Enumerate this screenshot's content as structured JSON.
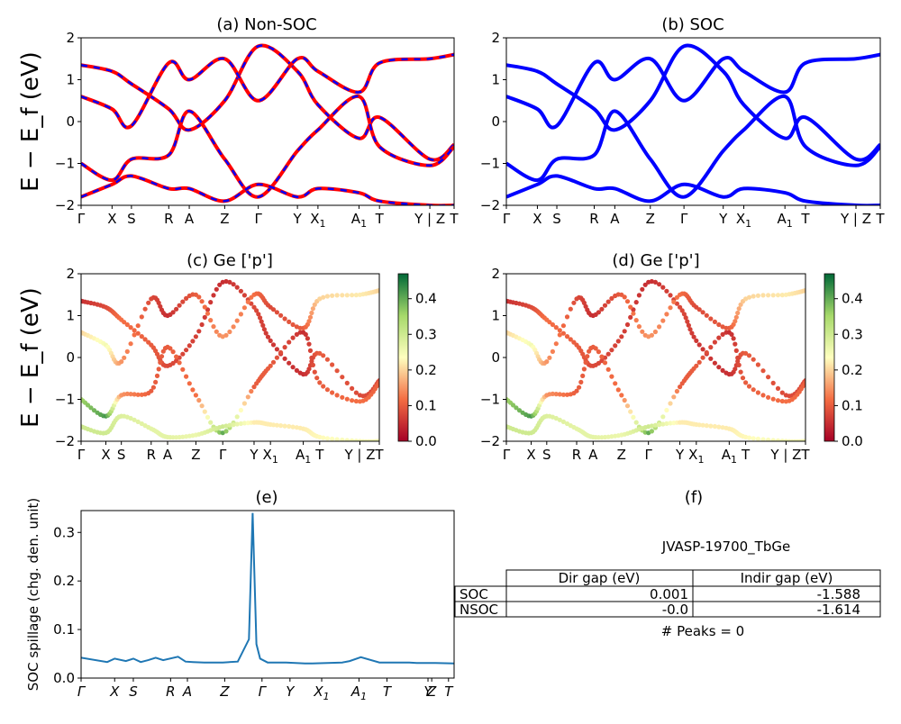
{
  "panels": {
    "a": {
      "title": "(a) Non-SOC",
      "ylabel": "E − E_f (eV)"
    },
    "b": {
      "title": "(b) SOC"
    },
    "c": {
      "title": "(c)  Ge ['p']",
      "ylabel": "E − E_f (eV)"
    },
    "d": {
      "title": "(d) Ge ['p']"
    },
    "e": {
      "title": "(e)",
      "ylabel": "SOC spillage (chg. den. unit)"
    },
    "f": {
      "title": "(f)"
    }
  },
  "band_ticks": [
    "Γ",
    "X",
    "S",
    "R",
    "A",
    "Z",
    "Γ",
    "Y",
    "X1",
    "A1",
    "T",
    "Y | Z",
    "T"
  ],
  "band_yticks": [
    "2",
    "1",
    "0",
    "−1",
    "−2"
  ],
  "colorbar_ticks": [
    "0.4",
    "0.3",
    "0.2",
    "0.1",
    "0.0"
  ],
  "spillage_yticks": [
    "0.3",
    "0.2",
    "0.1",
    "0.0"
  ],
  "spillage_xticks": [
    "Γ",
    "X",
    "S",
    "R",
    "A",
    "Z",
    "Γ",
    "Y",
    "X1",
    "A1",
    "T",
    "Y",
    "Z",
    "T"
  ],
  "colors": {
    "nonsoc_line": "#ff0000",
    "nonsoc_dash": "#0000ff",
    "soc_line": "#0000ff",
    "spillage_line": "#1f77b4"
  },
  "info": {
    "material": "JVASP-19700_TbGe",
    "table_headers": [
      "Dir gap (eV)",
      "Indir gap (eV)"
    ],
    "rows": [
      {
        "label": "SOC",
        "dir": "0.001",
        "indir": "-1.588"
      },
      {
        "label": "NSOC",
        "dir": "-0.0",
        "indir": "-1.614"
      }
    ],
    "peaks": "# Peaks = 0"
  },
  "chart_data": [
    {
      "type": "line",
      "title": "(a) Non-SOC",
      "ylabel": "E − E_f (eV)",
      "ylim": [
        -2,
        2
      ],
      "xticks": [
        "Γ",
        "X",
        "S",
        "R",
        "A",
        "Z",
        "Γ",
        "Y",
        "X1",
        "A1",
        "T",
        "Y | Z",
        "T"
      ],
      "series": [
        {
          "values": [
            1.35,
            1.2,
            0.9,
            0.3,
            -0.2,
            0.5,
            1.8,
            1.2,
            0.4,
            -0.4,
            0.1,
            -0.9,
            -0.55
          ]
        },
        {
          "values": [
            -1.0,
            -1.4,
            -0.9,
            -0.8,
            0.25,
            -0.9,
            -1.8,
            -0.7,
            -0.2,
            0.6,
            -0.6,
            -1.05,
            -0.6
          ]
        },
        {
          "values": [
            0.6,
            0.3,
            -0.1,
            1.4,
            1.0,
            1.5,
            0.5,
            1.5,
            1.2,
            0.7,
            1.4,
            1.5,
            1.6
          ]
        },
        {
          "values": [
            -1.8,
            -1.5,
            -1.3,
            -1.6,
            -1.6,
            -1.9,
            -1.5,
            -1.8,
            -1.6,
            -1.7,
            -1.9,
            -2.0,
            -2.0
          ]
        }
      ]
    },
    {
      "type": "line",
      "title": "(b) SOC",
      "ylim": [
        -2,
        2
      ],
      "xticks": [
        "Γ",
        "X",
        "S",
        "R",
        "A",
        "Z",
        "Γ",
        "Y",
        "X1",
        "A1",
        "T",
        "Y | Z",
        "T"
      ],
      "series": [
        {
          "values": [
            1.35,
            1.2,
            0.9,
            0.3,
            -0.2,
            0.5,
            1.8,
            1.2,
            0.4,
            -0.4,
            0.1,
            -0.9,
            -0.55
          ]
        },
        {
          "values": [
            -1.0,
            -1.4,
            -0.9,
            -0.8,
            0.25,
            -0.9,
            -1.8,
            -0.7,
            -0.2,
            0.6,
            -0.6,
            -1.05,
            -0.6
          ]
        },
        {
          "values": [
            0.6,
            0.3,
            -0.1,
            1.4,
            1.0,
            1.5,
            0.5,
            1.5,
            1.2,
            0.7,
            1.4,
            1.5,
            1.6
          ]
        },
        {
          "values": [
            -1.8,
            -1.5,
            -1.3,
            -1.6,
            -1.6,
            -1.9,
            -1.5,
            -1.8,
            -1.6,
            -1.7,
            -1.9,
            -2.0,
            -2.0
          ]
        }
      ]
    },
    {
      "type": "scatter",
      "title": "(c)  Ge ['p']",
      "ylabel": "E − E_f (eV)",
      "ylim": [
        -2,
        2
      ],
      "colorbar_range": [
        0.0,
        0.47
      ],
      "xticks": [
        "Γ",
        "X",
        "S",
        "R",
        "A",
        "Z",
        "Γ",
        "Y",
        "X1",
        "A1",
        "T",
        "Y | Z",
        "T"
      ],
      "series": [
        {
          "values": [
            1.35,
            1.2,
            0.9,
            0.3,
            -0.2,
            0.5,
            1.8,
            1.2,
            0.4,
            -0.4,
            0.1,
            -0.9,
            -0.55
          ],
          "weights": [
            0.05,
            0.08,
            0.12,
            0.1,
            0.08,
            0.07,
            0.05,
            0.08,
            0.06,
            0.05,
            0.1,
            0.08,
            0.08
          ]
        },
        {
          "values": [
            -1.0,
            -1.4,
            -0.9,
            -0.8,
            0.25,
            -0.9,
            -1.8,
            -0.7,
            -0.2,
            0.6,
            -0.6,
            -1.05,
            -0.6
          ],
          "weights": [
            0.35,
            0.42,
            0.15,
            0.1,
            0.1,
            0.12,
            0.4,
            0.1,
            0.1,
            0.05,
            0.1,
            0.12,
            0.1
          ]
        },
        {
          "values": [
            0.6,
            0.3,
            -0.1,
            1.4,
            1.0,
            1.5,
            0.5,
            1.5,
            1.2,
            0.7,
            1.4,
            1.5,
            1.6
          ],
          "weights": [
            0.2,
            0.25,
            0.15,
            0.08,
            0.05,
            0.1,
            0.15,
            0.12,
            0.08,
            0.1,
            0.2,
            0.22,
            0.2
          ]
        },
        {
          "values": [
            -1.65,
            -1.8,
            -1.4,
            -1.7,
            -1.9,
            -1.85,
            -1.65,
            -1.55,
            -1.6,
            -1.7,
            -1.9,
            -2.0,
            -2.0
          ],
          "weights": [
            0.3,
            0.3,
            0.28,
            0.27,
            0.27,
            0.26,
            0.3,
            0.22,
            0.22,
            0.22,
            0.23,
            0.25,
            0.25
          ]
        }
      ]
    },
    {
      "type": "scatter",
      "title": "(d) Ge ['p']",
      "ylim": [
        -2,
        2
      ],
      "colorbar_range": [
        0.0,
        0.47
      ],
      "xticks": [
        "Γ",
        "X",
        "S",
        "R",
        "A",
        "Z",
        "Γ",
        "Y",
        "X1",
        "A1",
        "T",
        "Y | Z",
        "T"
      ],
      "series": [
        {
          "values": [
            1.35,
            1.2,
            0.9,
            0.3,
            -0.2,
            0.5,
            1.8,
            1.2,
            0.4,
            -0.4,
            0.1,
            -0.9,
            -0.55
          ],
          "weights": [
            0.05,
            0.08,
            0.12,
            0.1,
            0.08,
            0.07,
            0.05,
            0.08,
            0.06,
            0.05,
            0.1,
            0.08,
            0.08
          ]
        },
        {
          "values": [
            -1.0,
            -1.4,
            -0.9,
            -0.8,
            0.25,
            -0.9,
            -1.8,
            -0.7,
            -0.2,
            0.6,
            -0.6,
            -1.05,
            -0.6
          ],
          "weights": [
            0.35,
            0.42,
            0.15,
            0.1,
            0.1,
            0.12,
            0.4,
            0.1,
            0.1,
            0.05,
            0.1,
            0.12,
            0.1
          ]
        },
        {
          "values": [
            0.6,
            0.3,
            -0.1,
            1.4,
            1.0,
            1.5,
            0.5,
            1.5,
            1.2,
            0.7,
            1.4,
            1.5,
            1.6
          ],
          "weights": [
            0.2,
            0.25,
            0.15,
            0.08,
            0.05,
            0.1,
            0.15,
            0.12,
            0.08,
            0.1,
            0.2,
            0.22,
            0.2
          ]
        },
        {
          "values": [
            -1.65,
            -1.8,
            -1.4,
            -1.7,
            -1.9,
            -1.85,
            -1.65,
            -1.55,
            -1.6,
            -1.7,
            -1.9,
            -2.0,
            -2.0
          ],
          "weights": [
            0.3,
            0.3,
            0.28,
            0.27,
            0.27,
            0.26,
            0.3,
            0.22,
            0.22,
            0.22,
            0.23,
            0.25,
            0.25
          ]
        }
      ]
    },
    {
      "type": "line",
      "title": "(e)",
      "ylabel": "SOC spillage (chg. den. unit)",
      "ylim": [
        0,
        0.345
      ],
      "xticks": [
        "Γ",
        "X",
        "S",
        "R",
        "A",
        "Z",
        "Γ",
        "Y",
        "X1",
        "A1",
        "T",
        "Y",
        "Z",
        "T"
      ],
      "x": [
        0,
        0.07,
        0.09,
        0.12,
        0.14,
        0.16,
        0.18,
        0.2,
        0.22,
        0.26,
        0.28,
        0.3,
        0.33,
        0.38,
        0.42,
        0.45,
        0.46,
        0.47,
        0.48,
        0.5,
        0.55,
        0.6,
        0.62,
        0.7,
        0.72,
        0.75,
        0.8,
        0.88,
        0.9,
        0.95,
        1.0
      ],
      "values": [
        0.042,
        0.033,
        0.04,
        0.035,
        0.04,
        0.033,
        0.037,
        0.042,
        0.037,
        0.044,
        0.034,
        0.033,
        0.032,
        0.032,
        0.034,
        0.08,
        0.34,
        0.07,
        0.04,
        0.032,
        0.032,
        0.03,
        0.03,
        0.032,
        0.035,
        0.043,
        0.032,
        0.032,
        0.031,
        0.031,
        0.03
      ]
    }
  ]
}
